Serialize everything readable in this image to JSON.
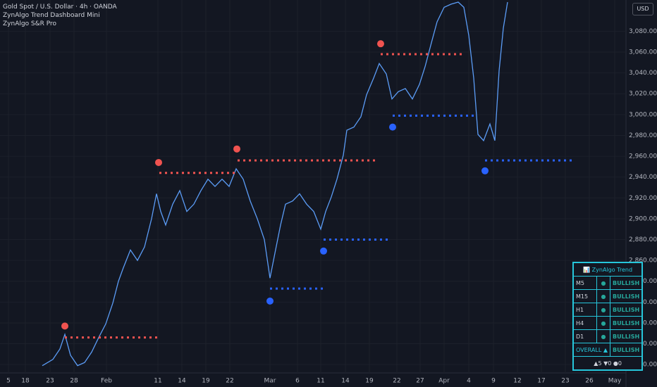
{
  "header": {
    "symbol": "Gold Spot / U.S. Dollar · 4h · OANDA",
    "indicators": [
      "ZynAlgo Trend Dashboard Mini",
      "ZynAlgo S&R Pro"
    ],
    "currency": "USD"
  },
  "dashboard": {
    "title": "📊 ZynAlgo Trend",
    "rows": [
      [
        "M5",
        "●",
        "BULLISH"
      ],
      [
        "M15",
        "●",
        "BULLISH"
      ],
      [
        "H1",
        "●",
        "BULLISH"
      ],
      [
        "H4",
        "●",
        "BULLISH"
      ],
      [
        "D1",
        "●",
        "BULLISH"
      ],
      [
        "OVERALL ▲",
        "BULLISH"
      ]
    ],
    "summary": "▲5 ▼0 ●0"
  },
  "chart_data": {
    "type": "line",
    "grid": true,
    "xlim": [
      0,
      888
    ],
    "ylim": [
      2752,
      3110
    ],
    "xticks": [
      {
        "value": 12,
        "label": "5"
      },
      {
        "value": 36,
        "label": "18"
      },
      {
        "value": 71,
        "label": "23"
      },
      {
        "value": 105,
        "label": "28"
      },
      {
        "value": 151,
        "label": "Feb"
      },
      {
        "value": 224,
        "label": "11"
      },
      {
        "value": 258,
        "label": "14"
      },
      {
        "value": 292,
        "label": "19"
      },
      {
        "value": 326,
        "label": "22"
      },
      {
        "value": 383,
        "label": "Mar"
      },
      {
        "value": 422,
        "label": "6"
      },
      {
        "value": 455,
        "label": "11"
      },
      {
        "value": 490,
        "label": "14"
      },
      {
        "value": 524,
        "label": "19"
      },
      {
        "value": 563,
        "label": "22"
      },
      {
        "value": 596,
        "label": "27"
      },
      {
        "value": 630,
        "label": "Apr"
      },
      {
        "value": 665,
        "label": "4"
      },
      {
        "value": 700,
        "label": "9"
      },
      {
        "value": 734,
        "label": "12"
      },
      {
        "value": 768,
        "label": "17"
      },
      {
        "value": 802,
        "label": "23"
      },
      {
        "value": 836,
        "label": "26"
      },
      {
        "value": 872,
        "label": "May"
      }
    ],
    "yticks": [
      {
        "value": 2760,
        "label": "2,760.000"
      },
      {
        "value": 2780,
        "label": "2,780.000"
      },
      {
        "value": 2800,
        "label": "2,800.000"
      },
      {
        "value": 2820,
        "label": "2,820.000"
      },
      {
        "value": 2840,
        "label": "2,840.000"
      },
      {
        "value": 2860,
        "label": "2,860.000"
      },
      {
        "value": 2880,
        "label": "2,880.000"
      },
      {
        "value": 2900,
        "label": "2,900.000"
      },
      {
        "value": 2920,
        "label": "2,920.000"
      },
      {
        "value": 2940,
        "label": "2,940.000"
      },
      {
        "value": 2960,
        "label": "2,960.000"
      },
      {
        "value": 2980,
        "label": "2,980.000"
      },
      {
        "value": 3000,
        "label": "3,000.000"
      },
      {
        "value": 3020,
        "label": "3,020.000"
      },
      {
        "value": 3040,
        "label": "3,040.000"
      },
      {
        "value": 3060,
        "label": "3,060.000"
      },
      {
        "value": 3080,
        "label": "3,080.000"
      }
    ],
    "x": [
      60,
      75,
      85,
      92,
      100,
      110,
      120,
      130,
      140,
      150,
      160,
      168,
      175,
      185,
      195,
      205,
      215,
      222,
      228,
      235,
      245,
      255,
      265,
      275,
      285,
      295,
      305,
      315,
      325,
      335,
      345,
      355,
      365,
      375,
      383,
      390,
      398,
      405,
      415,
      425,
      435,
      445,
      455,
      462,
      470,
      478,
      487,
      492,
      502,
      512,
      520,
      530,
      538,
      548,
      556,
      565,
      575,
      585,
      595,
      603,
      612,
      620,
      630,
      640,
      650,
      658,
      665,
      672,
      678,
      686,
      695,
      702,
      708,
      714,
      720
    ],
    "series": [
      {
        "name": "XAUUSD",
        "color": "#5b9cf6",
        "values": [
          2759,
          2765,
          2775,
          2789,
          2769,
          2759,
          2762,
          2772,
          2786,
          2799,
          2819,
          2840,
          2853,
          2870,
          2860,
          2873,
          2900,
          2924,
          2907,
          2894,
          2914,
          2927,
          2907,
          2914,
          2927,
          2938,
          2931,
          2938,
          2931,
          2948,
          2938,
          2917,
          2900,
          2880,
          2843,
          2867,
          2894,
          2914,
          2917,
          2924,
          2914,
          2907,
          2890,
          2907,
          2921,
          2938,
          2961,
          2985,
          2988,
          2998,
          3019,
          3035,
          3049,
          3039,
          3015,
          3022,
          3025,
          3015,
          3029,
          3046,
          3069,
          3089,
          3103,
          3106,
          3108,
          3103,
          3076,
          3035,
          2981,
          2975,
          2991,
          2975,
          3042,
          3083,
          3108
        ]
      }
    ],
    "resistance": {
      "color": "#f05350",
      "levels": [
        {
          "dot_x": 92,
          "dot": 2797,
          "price": 2786,
          "x": [
            92,
            225
          ]
        },
        {
          "dot_x": 225,
          "dot": 2954,
          "price": 2944,
          "x": [
            226,
            336
          ]
        },
        {
          "dot_x": 336,
          "dot": 2967,
          "price": 2956,
          "x": [
            337,
            535
          ]
        },
        {
          "dot_x": 540,
          "dot": 3068,
          "price": 3058,
          "x": [
            540,
            655
          ]
        }
      ]
    },
    "support": {
      "color": "#2962ff",
      "levels": [
        {
          "dot_x": 383,
          "dot": 2821,
          "price": 2833,
          "x": [
            383,
            460
          ]
        },
        {
          "dot_x": 459,
          "dot": 2869,
          "price": 2880,
          "x": [
            459,
            555
          ]
        },
        {
          "dot_x": 557,
          "dot": 2988,
          "price": 2999,
          "x": [
            557,
            675
          ]
        },
        {
          "dot_x": 688,
          "dot": 2946,
          "price": 2956,
          "x": [
            688,
            812
          ]
        }
      ]
    }
  }
}
